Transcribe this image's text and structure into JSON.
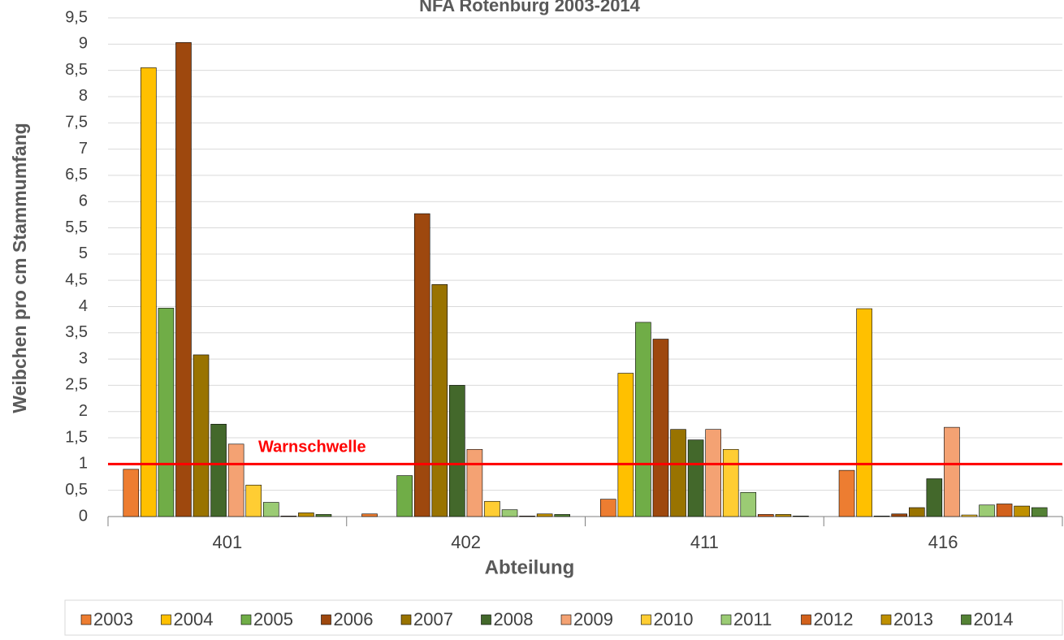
{
  "chart_data": {
    "type": "bar",
    "title": "NFA Rotenburg 2003-2014",
    "x_label": "Abteilung",
    "y_label": "Weibchen pro cm Stammumfang",
    "categories": [
      "401",
      "402",
      "411",
      "416"
    ],
    "series": [
      {
        "name": "2003",
        "color": "#ED7D31",
        "values": [
          0.9,
          0.05,
          0.33,
          0.88
        ]
      },
      {
        "name": "2004",
        "color": "#FFC000",
        "values": [
          8.55,
          0,
          2.73,
          3.96
        ]
      },
      {
        "name": "2005",
        "color": "#70AD47",
        "values": [
          3.97,
          0.78,
          3.7,
          0.01
        ]
      },
      {
        "name": "2006",
        "color": "#9E480E",
        "values": [
          9.03,
          5.77,
          3.38,
          0.05
        ]
      },
      {
        "name": "2007",
        "color": "#997300",
        "values": [
          3.08,
          4.42,
          1.66,
          0.17
        ]
      },
      {
        "name": "2008",
        "color": "#43682B",
        "values": [
          1.76,
          2.5,
          1.46,
          0.72
        ]
      },
      {
        "name": "2009",
        "color": "#F4A273",
        "values": [
          1.38,
          1.28,
          1.66,
          1.7
        ]
      },
      {
        "name": "2010",
        "color": "#FFCD33",
        "values": [
          0.6,
          0.29,
          1.28,
          0.03
        ]
      },
      {
        "name": "2011",
        "color": "#9BCB74",
        "values": [
          0.27,
          0.13,
          0.46,
          0.22
        ]
      },
      {
        "name": "2012",
        "color": "#D2611C",
        "values": [
          0.01,
          0.01,
          0.04,
          0.24
        ]
      },
      {
        "name": "2013",
        "color": "#BF9000",
        "values": [
          0.07,
          0.05,
          0.04,
          0.2
        ]
      },
      {
        "name": "2014",
        "color": "#548235",
        "values": [
          0.04,
          0.04,
          0.01,
          0.17
        ]
      }
    ],
    "ylim": [
      0,
      9.5
    ],
    "yticks": [
      0,
      {
        "value": 0.5,
        "label": "0,5"
      },
      1,
      {
        "value": 1.5,
        "label": "1,5"
      },
      2,
      {
        "value": 2.5,
        "label": "2,5"
      },
      3,
      {
        "value": 3.5,
        "label": "3,5"
      },
      4,
      {
        "value": 4.5,
        "label": "4,5"
      },
      5,
      {
        "value": 5.5,
        "label": "5,5"
      },
      6,
      {
        "value": 6.5,
        "label": "6,5"
      },
      7,
      {
        "value": 7.5,
        "label": "7,5"
      },
      8,
      {
        "value": 8.5,
        "label": "8,5"
      },
      9,
      {
        "value": 9.5,
        "label": "9,5"
      }
    ],
    "grid": true,
    "threshold": {
      "value": 1,
      "label": "Warnschwelle",
      "color": "#FF0000"
    },
    "legend": "bottom"
  }
}
